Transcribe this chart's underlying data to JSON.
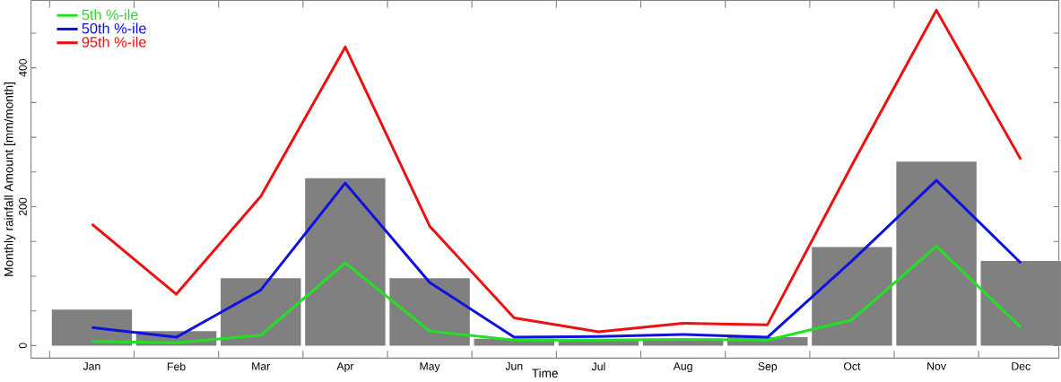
{
  "chart_data": {
    "type": "line",
    "xlabel": "Time",
    "ylabel": "Monthly rainfall Amount [mm/month]",
    "categories": [
      "Jan",
      "Feb",
      "Mar",
      "Apr",
      "May",
      "Jun",
      "Jul",
      "Aug",
      "Sep",
      "Oct",
      "Nov",
      "Dec"
    ],
    "series": [
      {
        "type": "bar",
        "color": "#808080",
        "values": [
          52,
          21,
          97,
          241,
          97,
          10,
          8,
          10,
          12,
          142,
          265,
          122
        ]
      },
      {
        "name": "5th %-ile",
        "color": "#22e022",
        "values": [
          6,
          4,
          15,
          119,
          21,
          8,
          8,
          9,
          8,
          37,
          143,
          26
        ]
      },
      {
        "name": "50th %-ile",
        "color": "#1010e0",
        "values": [
          26,
          12,
          80,
          234,
          91,
          12,
          13,
          16,
          12,
          122,
          238,
          119
        ]
      },
      {
        "name": "95th %-ile",
        "color": "#ee1111",
        "values": [
          175,
          74,
          215,
          430,
          172,
          40,
          20,
          32,
          30,
          260,
          483,
          268
        ]
      }
    ],
    "ylim": [
      -18,
      497
    ],
    "yticks": [
      0,
      {
        "value": 50,
        "label": null
      },
      {
        "value": 100,
        "label": null
      },
      {
        "value": 150,
        "label": null
      },
      200,
      {
        "value": 250,
        "label": null
      },
      {
        "value": 300,
        "label": null
      },
      {
        "value": 350,
        "label": null
      },
      400,
      {
        "value": 450,
        "label": null
      }
    ],
    "grid": false,
    "legend": "top left",
    "marker": "none",
    "line_style": "solid"
  }
}
